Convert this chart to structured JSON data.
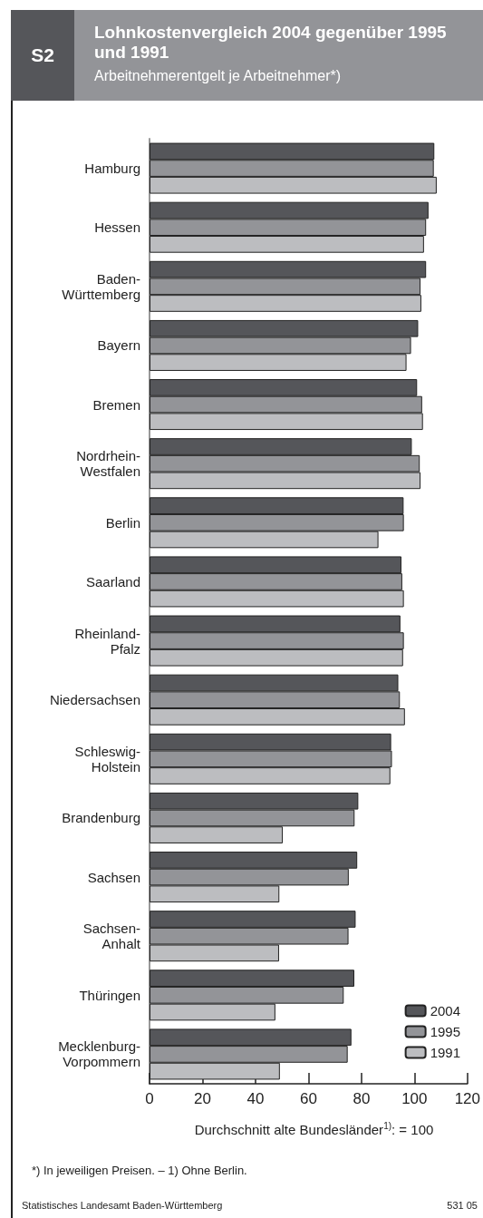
{
  "chart_data": {
    "type": "bar",
    "orientation": "horizontal",
    "title": "Lohnkostenvergleich 2004 gegenüber 1995 und 1991",
    "subtitle": "Arbeitnehmerentgelt je Arbeitnehmer*)",
    "xlabel": "Durchschnitt alte Bundesländer$^{1)}$: = 100",
    "categories": [
      "Hamburg",
      "Hessen",
      "Baden-Württemberg",
      "Bayern",
      "Bremen",
      "Nordrhein-Westfalen",
      "Berlin",
      "Saarland",
      "Rheinland-Pfalz",
      "Niedersachsen",
      "Schleswig-Holstein",
      "Brandenburg",
      "Sachsen",
      "Sachsen-Anhalt",
      "Thüringen",
      "Mecklenburg-Vorpommern"
    ],
    "series": [
      {
        "name": "2004",
        "color": "#55565a",
        "values": [
          107.5,
          105.3,
          104.4,
          101.4,
          101.0,
          99.0,
          95.9,
          95.1,
          94.7,
          93.9,
          91.2,
          78.8,
          78.4,
          77.8,
          77.3,
          76.2
        ]
      },
      {
        "name": "1995",
        "color": "#939498",
        "values": [
          107.3,
          104.4,
          102.3,
          98.7,
          102.9,
          102.0,
          96.0,
          95.4,
          96.0,
          94.5,
          91.5,
          77.4,
          75.2,
          75.1,
          73.3,
          74.8
        ]
      },
      {
        "name": "1991",
        "color": "#bcbdc0",
        "values": [
          108.4,
          103.6,
          102.6,
          97.0,
          103.2,
          102.3,
          86.4,
          96.0,
          95.7,
          96.4,
          90.9,
          50.3,
          49.0,
          48.9,
          47.5,
          49.2
        ]
      }
    ],
    "xlim": [
      0,
      120
    ],
    "xticks": [
      0,
      20,
      40,
      60,
      80,
      100,
      120
    ],
    "grid": false,
    "legend": "bottom right",
    "annotations": [
      "S2",
      "*) In jeweiligen Preisen. – 1) Ohne Berlin.",
      "Statistisches Landesamt Baden-Württemberg",
      "531 05"
    ]
  }
}
